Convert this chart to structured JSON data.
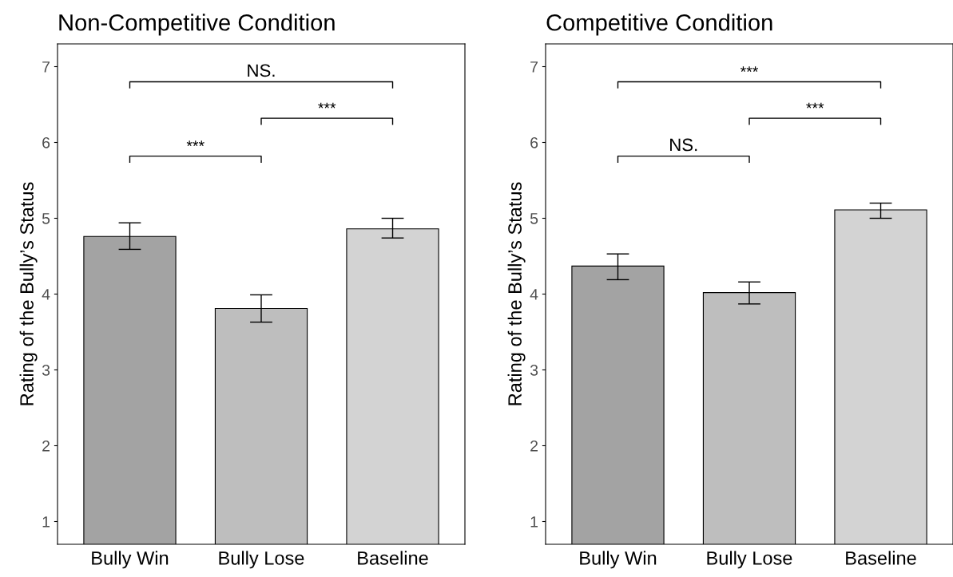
{
  "chart_data": [
    {
      "type": "bar",
      "title": "Non-Competitive Condition",
      "ylabel": "Rating of the Bully’s Status",
      "categories": [
        "Bully Win",
        "Bully Lose",
        "Baseline"
      ],
      "values": [
        4.76,
        3.81,
        4.86
      ],
      "colors": [
        "#a3a3a3",
        "#bebebe",
        "#d3d3d3"
      ],
      "errors": [
        [
          4.59,
          4.94
        ],
        [
          3.63,
          3.99
        ],
        [
          4.74,
          5.0
        ]
      ],
      "ylim": [
        0.7,
        7.3
      ],
      "yticks": [
        1,
        2,
        3,
        4,
        5,
        6,
        7
      ],
      "grid": false,
      "legend": false,
      "annotations": [
        "NS.",
        "***",
        "***"
      ]
    },
    {
      "type": "bar",
      "title": "Competitive Condition",
      "ylabel": "Rating of the Bully’s Status",
      "categories": [
        "Bully Win",
        "Bully Lose",
        "Baseline"
      ],
      "values": [
        4.37,
        4.02,
        5.11
      ],
      "colors": [
        "#a3a3a3",
        "#bebebe",
        "#d3d3d3"
      ],
      "errors": [
        [
          4.19,
          4.53
        ],
        [
          3.87,
          4.16
        ],
        [
          5.0,
          5.2
        ]
      ],
      "ylim": [
        0.7,
        7.3
      ],
      "yticks": [
        1,
        2,
        3,
        4,
        5,
        6,
        7
      ],
      "grid": false,
      "legend": false,
      "annotations": [
        "***",
        "***",
        "NS."
      ]
    }
  ]
}
